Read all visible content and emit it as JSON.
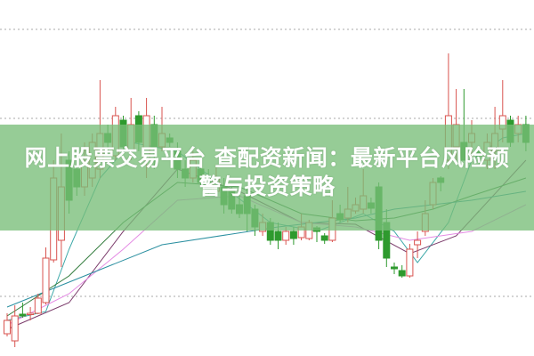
{
  "headline": {
    "line1": "网上股票交易平台 查配资新闻：最新平台风险预",
    "line2": "警与投资策略"
  },
  "colors": {
    "up": "#d9534f",
    "down": "#2e9a2e",
    "banner": "#78be78",
    "grid": "#aaaaaa"
  },
  "chart_data": {
    "type": "candlestick",
    "title": "",
    "xlabel": "",
    "ylabel": "",
    "ylim": [
      0,
      40
    ],
    "grid": true,
    "candles": [
      [
        2.5,
        4.0,
        4.8,
        2.2
      ],
      [
        1.7,
        4.5,
        5.7,
        1.0
      ],
      [
        4.7,
        4.5,
        6.0,
        4.3
      ],
      [
        4.7,
        4.8,
        5.5,
        4.0
      ],
      [
        4.8,
        6.5,
        7.0,
        4.7
      ],
      [
        6.0,
        11.0,
        12.2,
        5.8
      ],
      [
        10.8,
        20.0,
        22,
        10.5
      ],
      [
        13,
        19,
        25,
        10
      ],
      [
        22,
        17.5,
        23,
        16
      ],
      [
        21,
        19,
        22,
        18
      ],
      [
        19,
        21.5,
        24,
        18
      ],
      [
        20,
        24,
        25,
        19
      ],
      [
        21,
        25,
        31,
        20
      ],
      [
        25,
        24,
        26,
        23
      ],
      [
        22.5,
        27,
        28,
        22
      ],
      [
        26.5,
        23.5,
        27,
        23
      ],
      [
        23,
        26,
        29,
        22
      ],
      [
        27,
        24,
        27.5,
        23
      ],
      [
        22,
        27,
        29,
        20
      ],
      [
        26,
        23.5,
        27,
        21
      ],
      [
        23.5,
        25,
        28,
        23
      ],
      [
        24.5,
        24,
        25,
        23.5
      ],
      [
        23,
        21,
        24,
        20
      ],
      [
        21,
        20,
        22,
        19
      ],
      [
        20,
        22,
        23,
        19.5
      ],
      [
        21,
        19.5,
        22,
        19
      ],
      [
        20,
        18.5,
        21,
        18
      ],
      [
        18.5,
        20,
        21.5,
        18
      ],
      [
        19,
        17,
        20,
        16
      ],
      [
        18.5,
        16.5,
        19,
        16
      ],
      [
        17,
        16,
        18.5,
        15.5
      ],
      [
        18,
        16,
        19,
        14
      ],
      [
        16.5,
        14.5,
        17,
        13.5
      ],
      [
        14,
        15,
        16,
        13.5
      ],
      [
        15,
        13,
        15.5,
        12.5
      ],
      [
        14,
        13,
        15,
        12
      ],
      [
        13,
        14,
        14.5,
        12.5
      ],
      [
        14,
        13.2,
        14.5,
        12.5
      ],
      [
        13.3,
        14.5,
        16,
        13
      ],
      [
        13.2,
        15,
        15.3,
        13
      ],
      [
        14.4,
        14,
        14.6,
        12.8
      ],
      [
        13.5,
        13,
        13.8,
        12.6
      ],
      [
        13,
        15.5,
        17.5,
        12.8
      ],
      [
        16,
        15.3,
        17,
        15
      ],
      [
        15.5,
        16.5,
        19,
        15
      ],
      [
        16.3,
        17,
        17.8,
        16
      ],
      [
        16.5,
        18,
        21,
        16
      ],
      [
        17.2,
        16.6,
        17.8,
        16
      ],
      [
        19,
        13,
        19.5,
        12
      ],
      [
        15,
        11,
        16.5,
        10
      ],
      [
        10,
        9.8,
        10.5,
        9.2
      ],
      [
        9.6,
        9,
        10.2,
        8.8
      ],
      [
        9,
        12,
        12.6,
        8.8
      ],
      [
        12.5,
        13,
        14,
        11
      ],
      [
        14,
        16,
        17.5,
        13.5
      ],
      [
        17,
        19.5,
        20,
        16.5
      ],
      [
        20,
        19.5,
        20.2,
        18.5
      ],
      [
        22,
        27,
        34,
        21
      ],
      [
        23.5,
        26,
        30,
        22
      ],
      [
        24,
        22,
        30,
        22
      ],
      [
        24,
        25,
        26.5,
        22
      ],
      [
        23,
        22.5,
        23.5,
        21.5
      ],
      [
        22,
        24,
        25,
        21
      ],
      [
        23,
        25,
        28,
        21
      ],
      [
        25.5,
        27,
        31,
        24
      ],
      [
        26.5,
        24,
        27,
        23.5
      ],
      [
        25,
        26,
        27,
        24
      ],
      [
        26,
        24,
        27,
        23
      ]
    ],
    "moving_averages": [
      {
        "color": "#3aa7a7",
        "points": [
          [
            0,
            4
          ],
          [
            5,
            5
          ],
          [
            8,
            12
          ],
          [
            12,
            20
          ],
          [
            16,
            24
          ],
          [
            22,
            23
          ],
          [
            28,
            19
          ],
          [
            34,
            15
          ],
          [
            40,
            14
          ],
          [
            46,
            16
          ],
          [
            50,
            14
          ],
          [
            53,
            10.5
          ],
          [
            57,
            15
          ],
          [
            60,
            22
          ],
          [
            64,
            24.5
          ],
          [
            67,
            25
          ]
        ]
      },
      {
        "color": "#7a3a6a",
        "points": [
          [
            0,
            3
          ],
          [
            8,
            6
          ],
          [
            15,
            14
          ],
          [
            22,
            21
          ],
          [
            30,
            18.5
          ],
          [
            38,
            15
          ],
          [
            45,
            14.8
          ],
          [
            52,
            11.5
          ],
          [
            58,
            13.5
          ],
          [
            67,
            22
          ]
        ]
      },
      {
        "color": "#e48be4",
        "points": [
          [
            0,
            3.5
          ],
          [
            8,
            7
          ],
          [
            15,
            12
          ],
          [
            22,
            17.5
          ],
          [
            30,
            18
          ],
          [
            38,
            15
          ],
          [
            45,
            14.5
          ],
          [
            52,
            13
          ],
          [
            60,
            14
          ],
          [
            67,
            17
          ]
        ]
      },
      {
        "color": "#2f7a3a",
        "points": [
          [
            0,
            4.5
          ],
          [
            8,
            9
          ],
          [
            15,
            15
          ],
          [
            22,
            19.5
          ],
          [
            30,
            19
          ],
          [
            38,
            16
          ],
          [
            45,
            15.2
          ],
          [
            50,
            15.5
          ],
          [
            55,
            16.5
          ],
          [
            60,
            18
          ],
          [
            67,
            20
          ]
        ]
      },
      {
        "color": "#2a8fa0",
        "points": [
          [
            0,
            5.5
          ],
          [
            10,
            9
          ],
          [
            20,
            12.5
          ],
          [
            35,
            14.5
          ],
          [
            45,
            15.5
          ],
          [
            50,
            16.5
          ],
          [
            60,
            17.5
          ],
          [
            67,
            18.5
          ]
        ]
      }
    ],
    "gridlines": [
      36.7,
      26.7,
      6.7
    ]
  }
}
